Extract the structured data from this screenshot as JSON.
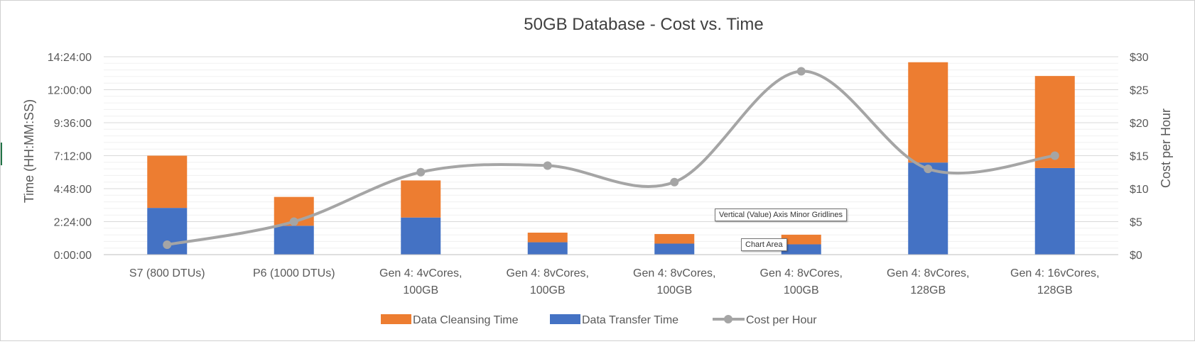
{
  "chart_data": {
    "type": "bar",
    "title": "50GB Database - Cost vs. Time",
    "categories": [
      [
        "S7 (800 DTUs)"
      ],
      [
        "P6 (1000 DTUs)"
      ],
      [
        "Gen 4: 4vCores,",
        "100GB"
      ],
      [
        "Gen 4: 8vCores,",
        "100GB"
      ],
      [
        "Gen 4: 8vCores,",
        "100GB"
      ],
      [
        "Gen 4: 8vCores,",
        "100GB"
      ],
      [
        "Gen 4: 8vCores,",
        "128GB"
      ],
      [
        "Gen 4: 16vCores,",
        "128GB"
      ]
    ],
    "series": [
      {
        "name": "Data Transfer Time",
        "kind": "stacked-bar",
        "color": "#4472C4",
        "values_seconds": [
          12240,
          7560,
          9720,
          3240,
          2880,
          2700,
          24120,
          22680
        ]
      },
      {
        "name": "Data Cleansing Time",
        "kind": "stacked-bar",
        "color": "#ED7D31",
        "values_seconds": [
          13680,
          7560,
          9720,
          2520,
          2520,
          2520,
          26280,
          24120
        ]
      },
      {
        "name": "Cost per Hour",
        "kind": "line",
        "axis": "secondary",
        "color": "#A5A5A5",
        "values": [
          1.5,
          5.0,
          12.5,
          13.5,
          11.0,
          27.8,
          13.0,
          15.0
        ]
      }
    ],
    "y_axis": {
      "label": "Time (HH:MM:SS)",
      "ticks": [
        "0:00:00",
        "2:24:00",
        "4:48:00",
        "7:12:00",
        "9:36:00",
        "12:00:00",
        "14:24:00"
      ],
      "range_seconds": [
        0,
        51840
      ],
      "major_step_seconds": 8640
    },
    "y2_axis": {
      "label": "Cost per Hour",
      "ticks": [
        "$0",
        "$5",
        "$10",
        "$15",
        "$20",
        "$25",
        "$30"
      ],
      "range": [
        0,
        30
      ]
    },
    "grid": "major and minor horizontal",
    "legend_position": "bottom",
    "legend": [
      {
        "label": "Data Cleansing Time",
        "color": "#ED7D31",
        "marker": "square"
      },
      {
        "label": "Data Transfer Time",
        "color": "#4472C4",
        "marker": "square"
      },
      {
        "label": "Cost per Hour",
        "color": "#A5A5A5",
        "marker": "line-dot"
      }
    ]
  },
  "tooltips": {
    "minor_gridlines": "Vertical (Value) Axis Minor Gridlines",
    "chart_area": "Chart Area"
  }
}
